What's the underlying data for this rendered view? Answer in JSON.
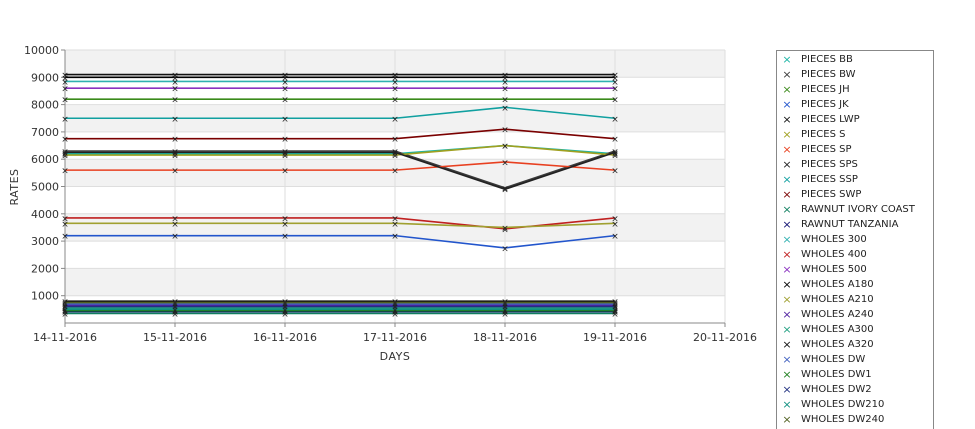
{
  "chart_data": {
    "type": "line",
    "xlabel": "DAYS",
    "ylabel": "RATES",
    "x_ticks": [
      "14-11-2016",
      "15-11-2016",
      "16-11-2016",
      "17-11-2016",
      "18-11-2016",
      "19-11-2016",
      "20-11-2016"
    ],
    "x": [
      "14-11-2016",
      "15-11-2016",
      "16-11-2016",
      "17-11-2016",
      "18-11-2016",
      "19-11-2016"
    ],
    "ylim": [
      0,
      10000
    ],
    "y_ticks": [
      1000,
      2000,
      3000,
      4000,
      5000,
      6000,
      7000,
      8000,
      9000,
      10000
    ],
    "grid": true,
    "legend_position": "right",
    "series": [
      {
        "name": "PIECES BB",
        "color": "#1ab4a4",
        "values": [
          6200,
          6200,
          6200,
          6200,
          6500,
          6200
        ]
      },
      {
        "name": "PIECES BW",
        "color": "#3a3a3a",
        "values": [
          6300,
          6300,
          6300,
          6300,
          4950,
          6300
        ]
      },
      {
        "name": "PIECES JH",
        "color": "#3a8a1a",
        "values": [
          8200,
          8200,
          8200,
          8200,
          8200,
          8200
        ]
      },
      {
        "name": "PIECES JK",
        "color": "#2255cc",
        "values": [
          3200,
          3200,
          3200,
          3200,
          2750,
          3200
        ]
      },
      {
        "name": "PIECES LWP",
        "color": "#111111",
        "values": [
          9100,
          9100,
          9100,
          9100,
          9100,
          9100
        ]
      },
      {
        "name": "PIECES S",
        "color": "#a0a020",
        "values": [
          6150,
          6150,
          6150,
          6150,
          6500,
          6150
        ]
      },
      {
        "name": "PIECES SP",
        "color": "#e84020",
        "values": [
          5600,
          5600,
          5600,
          5600,
          5900,
          5600
        ]
      },
      {
        "name": "PIECES SPS",
        "color": "#222222",
        "values": [
          6250,
          6250,
          6250,
          6250,
          4900,
          6250
        ]
      },
      {
        "name": "PIECES SSP",
        "color": "#10a0a0",
        "values": [
          7500,
          7500,
          7500,
          7500,
          7900,
          7500
        ]
      },
      {
        "name": "PIECES SWP",
        "color": "#7a0000",
        "values": [
          6750,
          6750,
          6750,
          6750,
          7100,
          6750
        ]
      },
      {
        "name": "RAWNUT IVORY COAST",
        "color": "#108060",
        "values": [
          350,
          350,
          350,
          350,
          350,
          350
        ]
      },
      {
        "name": "RAWNUT TANZANIA",
        "color": "#101070",
        "values": [
          420,
          420,
          420,
          420,
          420,
          420
        ]
      },
      {
        "name": "WHOLES 300",
        "color": "#30b0b0",
        "values": [
          8850,
          8850,
          8850,
          8850,
          8850,
          8850
        ]
      },
      {
        "name": "WHOLES 400",
        "color": "#c02020",
        "values": [
          3850,
          3850,
          3850,
          3850,
          3450,
          3850
        ]
      },
      {
        "name": "WHOLES 500",
        "color": "#8a30c0",
        "values": [
          8600,
          8600,
          8600,
          8600,
          8600,
          8600
        ]
      },
      {
        "name": "WHOLES A180",
        "color": "#000000",
        "values": [
          9000,
          9000,
          9000,
          9000,
          9000,
          9000
        ]
      },
      {
        "name": "WHOLES A210",
        "color": "#a0a030",
        "values": [
          3650,
          3650,
          3650,
          3650,
          3500,
          3650
        ]
      },
      {
        "name": "WHOLES A240",
        "color": "#5020a0",
        "values": [
          650,
          650,
          650,
          650,
          650,
          650
        ]
      },
      {
        "name": "WHOLES A300",
        "color": "#20a080",
        "values": [
          550,
          550,
          550,
          550,
          550,
          550
        ]
      },
      {
        "name": "WHOLES A320",
        "color": "#101010",
        "values": [
          800,
          800,
          800,
          800,
          800,
          800
        ]
      },
      {
        "name": "WHOLES DW",
        "color": "#4060c0",
        "values": [
          700,
          700,
          700,
          700,
          700,
          700
        ]
      },
      {
        "name": "WHOLES DW1",
        "color": "#208020",
        "values": [
          450,
          450,
          450,
          450,
          450,
          450
        ]
      },
      {
        "name": "WHOLES DW2",
        "color": "#203080",
        "values": [
          600,
          600,
          600,
          600,
          600,
          600
        ]
      },
      {
        "name": "WHOLES DW210",
        "color": "#109080",
        "values": [
          500,
          500,
          500,
          500,
          500,
          500
        ]
      },
      {
        "name": "WHOLES DW240",
        "color": "#506020",
        "values": [
          750,
          750,
          750,
          750,
          750,
          750
        ]
      }
    ]
  },
  "legend": {
    "marker": "×"
  }
}
